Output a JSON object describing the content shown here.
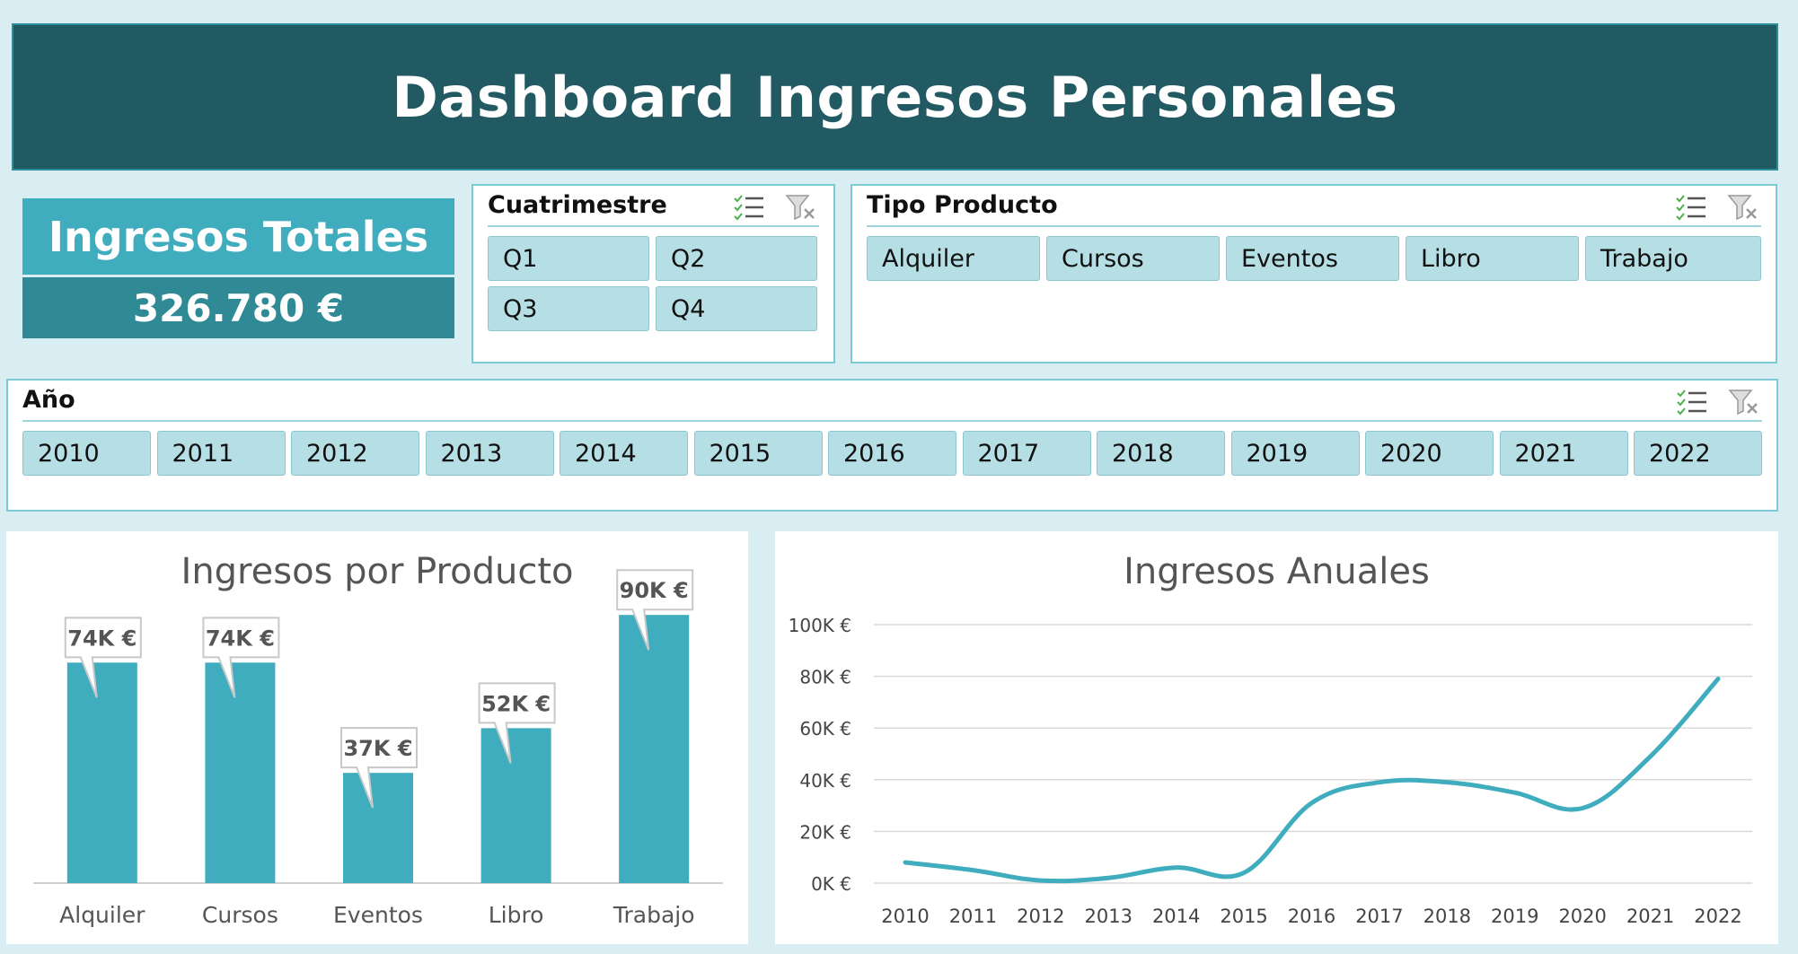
{
  "title": "Dashboard Ingresos Personales",
  "kpi": {
    "label": "Ingresos Totales",
    "value": "326.780 €"
  },
  "slicers": {
    "cuatrimestre": {
      "title": "Cuatrimestre",
      "items": [
        "Q1",
        "Q2",
        "Q3",
        "Q4"
      ]
    },
    "tipo_producto": {
      "title": "Tipo Producto",
      "items": [
        "Alquiler",
        "Cursos",
        "Eventos",
        "Libro",
        "Trabajo"
      ]
    },
    "anio": {
      "title": "Año",
      "items": [
        "2010",
        "2011",
        "2012",
        "2013",
        "2014",
        "2015",
        "2016",
        "2017",
        "2018",
        "2019",
        "2020",
        "2021",
        "2022"
      ]
    }
  },
  "icons": {
    "multiselect": "multi-select-icon",
    "clear_filter": "clear-filter-icon"
  },
  "colors": {
    "accent": "#3fadbd",
    "header": "#215a63",
    "chip": "#b6dfe5"
  },
  "chart_data": [
    {
      "type": "bar",
      "title": "Ingresos por Producto",
      "categories": [
        "Alquiler",
        "Cursos",
        "Eventos",
        "Libro",
        "Trabajo"
      ],
      "values": [
        74,
        74,
        37,
        52,
        90
      ],
      "data_labels": [
        "74K €",
        "74K €",
        "37K €",
        "52K €",
        "90K €"
      ],
      "ylim": [
        0,
        100
      ],
      "units": "K €"
    },
    {
      "type": "line",
      "title": "Ingresos Anuales",
      "x": [
        "2010",
        "2011",
        "2012",
        "2013",
        "2014",
        "2015",
        "2016",
        "2017",
        "2018",
        "2019",
        "2020",
        "2021",
        "2022"
      ],
      "values": [
        8,
        5,
        1,
        2,
        6,
        4,
        31,
        39,
        39,
        35,
        29,
        49,
        79
      ],
      "yticks": [
        "0K €",
        "20K €",
        "40K €",
        "60K €",
        "80K €",
        "100K €"
      ],
      "ylim": [
        0,
        100
      ],
      "grid": true
    }
  ]
}
